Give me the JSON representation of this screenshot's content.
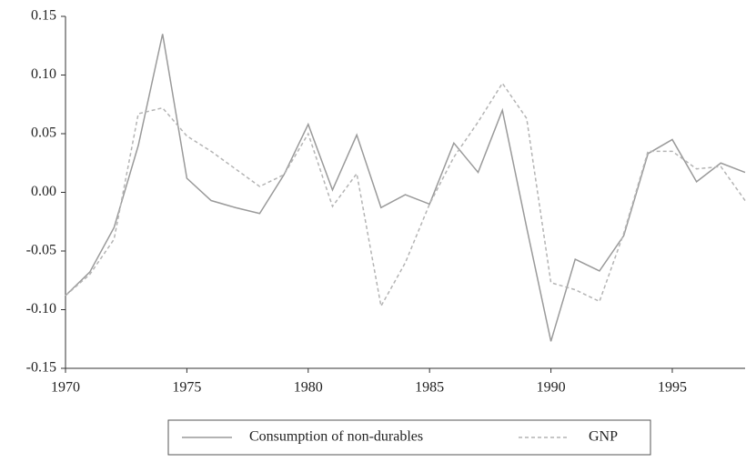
{
  "chart_data": {
    "type": "line",
    "x": [
      1970,
      1971,
      1972,
      1973,
      1974,
      1975,
      1976,
      1977,
      1978,
      1979,
      1980,
      1981,
      1982,
      1983,
      1984,
      1985,
      1986,
      1987,
      1988,
      1989,
      1990,
      1991,
      1992,
      1993,
      1994,
      1995,
      1996,
      1997,
      1998
    ],
    "series": [
      {
        "name": "Consumption of non-durables",
        "color": "#9a9a9a",
        "dashed": false,
        "values": [
          -0.088,
          -0.068,
          -0.03,
          0.04,
          0.135,
          0.012,
          -0.007,
          -0.013,
          -0.018,
          0.015,
          0.058,
          0.002,
          0.049,
          -0.013,
          -0.002,
          -0.01,
          0.042,
          0.017,
          0.07,
          -0.03,
          -0.127,
          -0.057,
          -0.067,
          -0.037,
          0.033,
          0.045,
          0.009,
          0.025,
          0.017
        ]
      },
      {
        "name": "GNP",
        "color": "#b4b4b4",
        "dashed": true,
        "values": [
          -0.088,
          -0.07,
          -0.04,
          0.067,
          0.072,
          0.048,
          0.035,
          0.02,
          0.005,
          0.015,
          0.05,
          -0.012,
          0.016,
          -0.097,
          -0.06,
          -0.01,
          0.03,
          0.06,
          0.093,
          0.063,
          -0.077,
          -0.083,
          -0.093,
          -0.035,
          0.035,
          0.035,
          0.02,
          0.022,
          -0.007
        ]
      }
    ],
    "xlim": [
      1970,
      1998
    ],
    "xticks": [
      1970,
      1975,
      1980,
      1985,
      1990,
      1995
    ],
    "ylim": [
      -0.15,
      0.15
    ],
    "yticks": [
      -0.15,
      {
        "value": -0.1,
        "label": "-0.10"
      },
      -0.05,
      {
        "value": 0,
        "label": "0.00"
      },
      0.05,
      {
        "value": 0.1,
        "label": "0.10"
      },
      0.15
    ],
    "legend": "bottom"
  }
}
